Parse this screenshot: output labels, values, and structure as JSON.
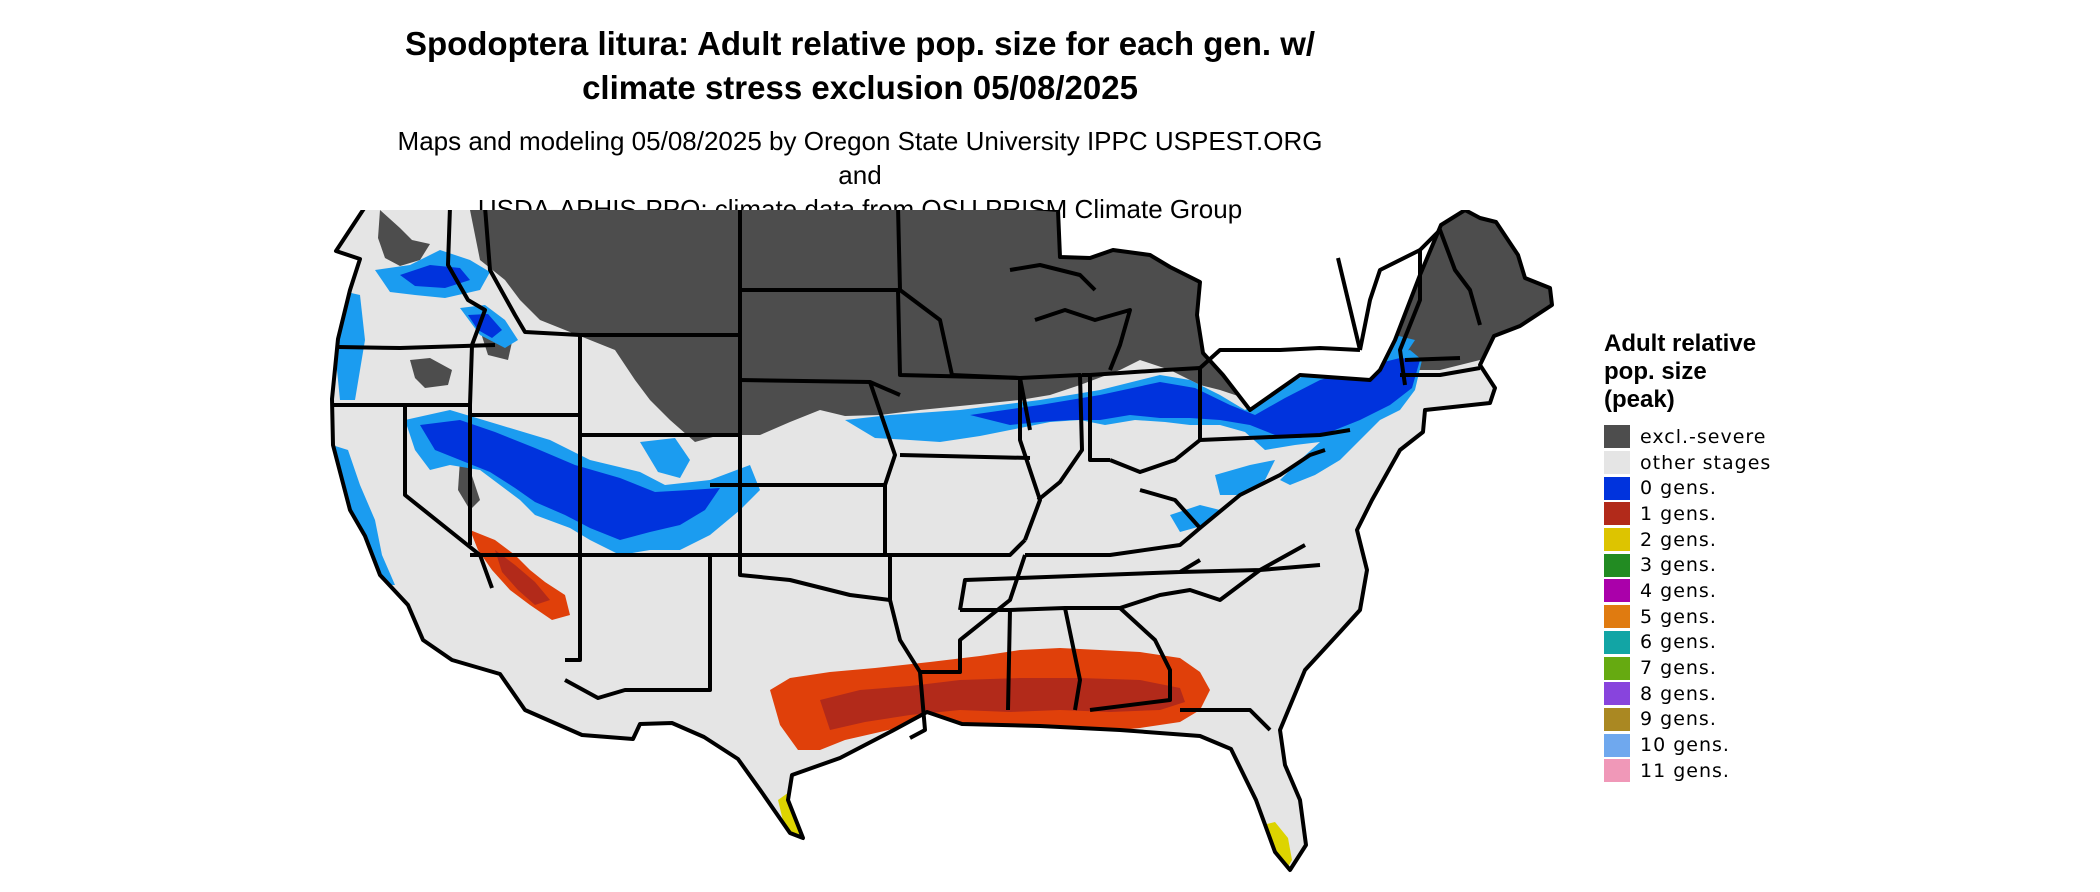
{
  "title": {
    "line1": "Spodoptera litura: Adult relative pop. size for each gen. w/",
    "line2": "climate stress exclusion 05/08/2025"
  },
  "subtitle": {
    "line1": "Maps and modeling 05/08/2025 by Oregon State University IPPC USPEST.ORG and",
    "line2": "USDA-APHIS-PPQ; climate data from OSU PRISM Climate Group"
  },
  "legend": {
    "title_lines": [
      "Adult relative",
      "pop. size",
      "(peak)"
    ],
    "items": [
      {
        "label": "excl.-severe",
        "color": "#4d4d4d"
      },
      {
        "label": "other stages",
        "color": "#e5e5e5"
      },
      {
        "label": "0 gens.",
        "color": "#0033dd"
      },
      {
        "label": "1 gens.",
        "color": "#b22a1a"
      },
      {
        "label": "2 gens.",
        "color": "#ddc400"
      },
      {
        "label": "3 gens.",
        "color": "#228b22"
      },
      {
        "label": "4 gens.",
        "color": "#aa00aa"
      },
      {
        "label": "5 gens.",
        "color": "#e07b10"
      },
      {
        "label": "6 gens.",
        "color": "#12a5a5"
      },
      {
        "label": "7 gens.",
        "color": "#66aa11"
      },
      {
        "label": "8 gens.",
        "color": "#8844dd"
      },
      {
        "label": "9 gens.",
        "color": "#aa8822"
      },
      {
        "label": "10 gens.",
        "color": "#6fa8ee"
      },
      {
        "label": "11 gens.",
        "color": "#f098b8"
      }
    ]
  },
  "map": {
    "base_color": "#e5e5e5",
    "excluded_color": "#4d4d4d",
    "blue_dark": "#0033dd",
    "blue_light": "#1b9cf0",
    "red_dark": "#b22a1a",
    "red_orange": "#e0400a",
    "yellow": "#ddd400",
    "border_color": "#000000"
  }
}
